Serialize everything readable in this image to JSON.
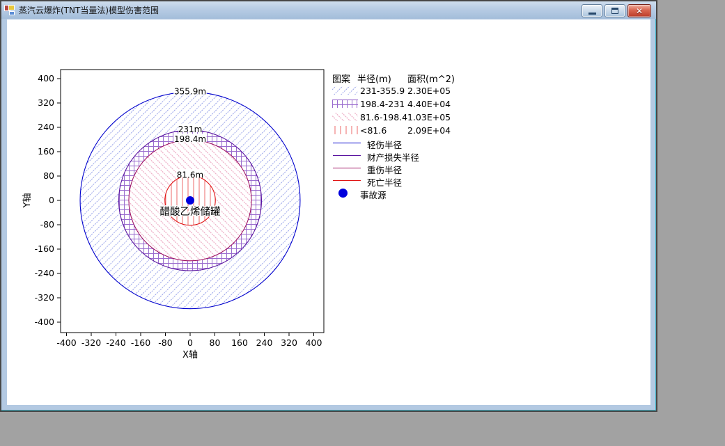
{
  "window": {
    "title": "蒸汽云爆炸(TNT当量法)模型伤害范围"
  },
  "chart_data": {
    "type": "area",
    "subtype": "concentric-damage-zones",
    "xlabel": "X轴",
    "ylabel": "Y轴",
    "xlim": [
      -400,
      400
    ],
    "ylim": [
      -400,
      400
    ],
    "xticks": [
      -400,
      -320,
      -240,
      -160,
      -80,
      0,
      80,
      160,
      240,
      320,
      400
    ],
    "yticks": [
      400,
      320,
      240,
      160,
      80,
      0,
      -80,
      -160,
      -240,
      -320,
      -400
    ],
    "grid": false,
    "legend_position": "right",
    "legend_headers": [
      "图案",
      "半径(m)",
      "面积(m^2)"
    ],
    "zones": [
      {
        "radius_m": 355.9,
        "circle_label": "355.9m",
        "radius_range": "231-355.9",
        "area_m2": "2.30E+05",
        "line_label": "轻伤半径",
        "stroke": "#0000cd",
        "hatch": "diagonal-up",
        "hatch_color": "#9aa4ea"
      },
      {
        "radius_m": 231,
        "circle_label": "231m",
        "radius_range": "198.4-231",
        "area_m2": "4.40E+04",
        "line_label": "财产损失半径",
        "stroke": "#5a14a0",
        "hatch": "grid",
        "hatch_color": "#9a6cce"
      },
      {
        "radius_m": 198.4,
        "circle_label": "198.4m",
        "radius_range": "81.6-198.4",
        "area_m2": "1.03E+05",
        "line_label": "重伤半径",
        "stroke": "#a01464",
        "hatch": "diagonal-down",
        "hatch_color": "#eca4bf"
      },
      {
        "radius_m": 81.6,
        "circle_label": "81.6m",
        "radius_range": "<81.6",
        "area_m2": "2.09E+04",
        "line_label": "死亡半径",
        "stroke": "#e01010",
        "hatch": "vertical",
        "hatch_color": "#ee7878"
      }
    ],
    "source_marker": {
      "label": "事故源",
      "color": "#0000dd",
      "x": 0,
      "y": 0
    },
    "center_label": "醋酸乙烯储罐"
  }
}
